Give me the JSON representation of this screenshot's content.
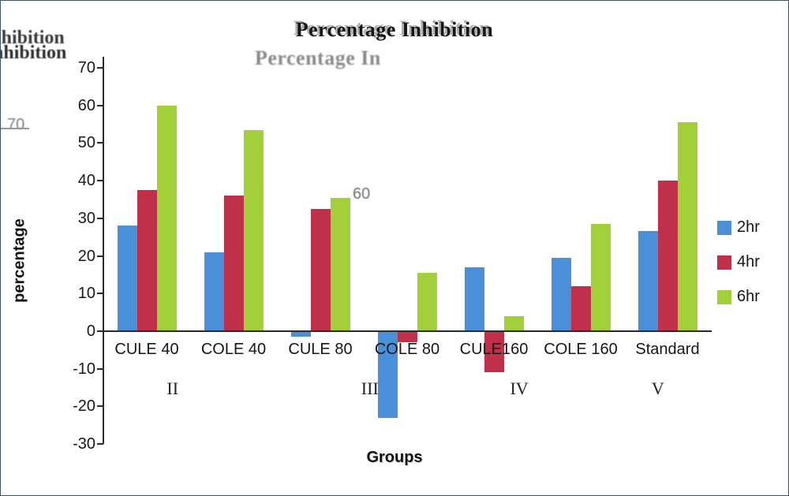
{
  "title": "Percentage Inhibition",
  "artifacts": [
    "ihibition",
    "nhibition",
    "Percentage In",
    "70",
    "60"
  ],
  "chart_data": {
    "type": "bar",
    "title": "Percentage Inhibition",
    "categories": [
      "CULE 40",
      "COLE 40",
      "CULE 80",
      "COLE 80",
      "CULE160",
      "COLE 160",
      "Standard"
    ],
    "series": [
      {
        "name": "2hr",
        "color": "#4a90d9",
        "values": [
          28,
          21,
          -1.5,
          -23,
          17,
          19.5,
          26.5
        ]
      },
      {
        "name": "4hr",
        "color": "#c0304a",
        "values": [
          37.5,
          36,
          32.5,
          -3,
          -11,
          12,
          40
        ]
      },
      {
        "name": "6hr",
        "color": "#a3cf3a",
        "values": [
          60,
          53.5,
          35.5,
          15.5,
          4,
          28.5,
          55.5
        ]
      }
    ],
    "xlabel": "Groups",
    "ylabel": "percentage",
    "ylim": [
      -30,
      70
    ],
    "ytick_step": 10,
    "group_labels_roman": [
      "II",
      "III",
      "IV",
      "V"
    ],
    "legend_position": "right",
    "grid": false
  }
}
